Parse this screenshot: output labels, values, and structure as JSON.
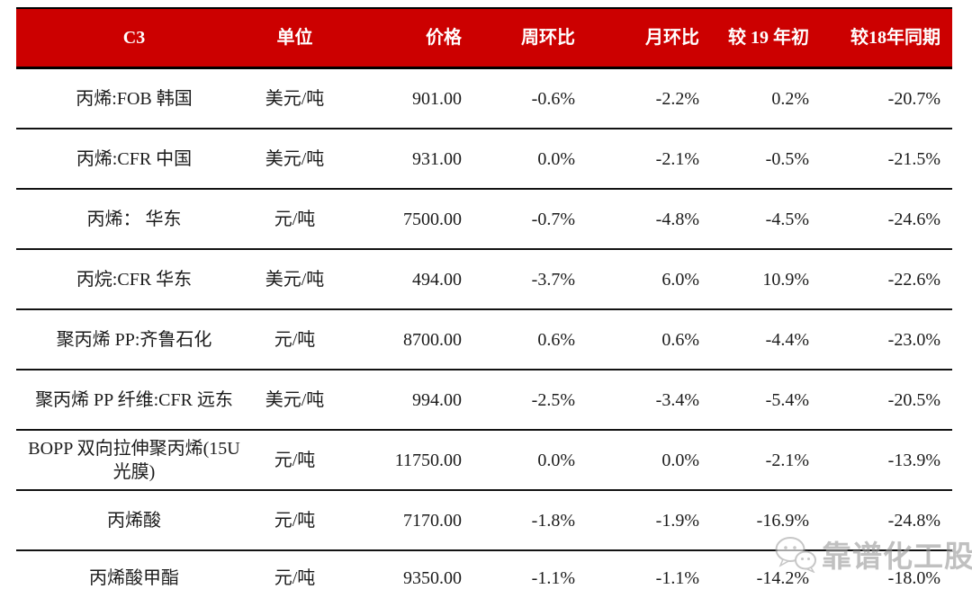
{
  "table": {
    "header_bg": "#CC0000",
    "header_text_color": "#FFFFFF",
    "border_color": "#131313",
    "columns": [
      {
        "label": "C3"
      },
      {
        "label": "单位"
      },
      {
        "label": "价格"
      },
      {
        "label": "周环比"
      },
      {
        "label": "月环比"
      },
      {
        "label": "较 19 年初"
      },
      {
        "label": "较18年同期"
      }
    ],
    "rows": [
      [
        "丙烯:FOB 韩国",
        "美元/吨",
        "901.00",
        "-0.6%",
        "-2.2%",
        "0.2%",
        "-20.7%"
      ],
      [
        "丙烯:CFR 中国",
        "美元/吨",
        "931.00",
        "0.0%",
        "-2.1%",
        "-0.5%",
        "-21.5%"
      ],
      [
        "丙烯： 华东",
        "元/吨",
        "7500.00",
        "-0.7%",
        "-4.8%",
        "-4.5%",
        "-24.6%"
      ],
      [
        "丙烷:CFR 华东",
        "美元/吨",
        "494.00",
        "-3.7%",
        "6.0%",
        "10.9%",
        "-22.6%"
      ],
      [
        "聚丙烯 PP:齐鲁石化",
        "元/吨",
        "8700.00",
        "0.6%",
        "0.6%",
        "-4.4%",
        "-23.0%"
      ],
      [
        "聚丙烯 PP 纤维:CFR 远东",
        "美元/吨",
        "994.00",
        "-2.5%",
        "-3.4%",
        "-5.4%",
        "-20.5%"
      ],
      [
        "BOPP 双向拉伸聚丙烯(15U 光膜)",
        "元/吨",
        "11750.00",
        "0.0%",
        "0.0%",
        "-2.1%",
        "-13.9%"
      ],
      [
        "丙烯酸",
        "元/吨",
        "7170.00",
        "-1.8%",
        "-1.9%",
        "-16.9%",
        "-24.8%"
      ],
      [
        "丙烯酸甲酯",
        "元/吨",
        "9350.00",
        "-1.1%",
        "-1.1%",
        "-14.2%",
        "-18.0%"
      ]
    ]
  },
  "watermark": {
    "text": "靠谱化工股",
    "icon": "wechat-icon",
    "color": "#9A9A9A"
  }
}
